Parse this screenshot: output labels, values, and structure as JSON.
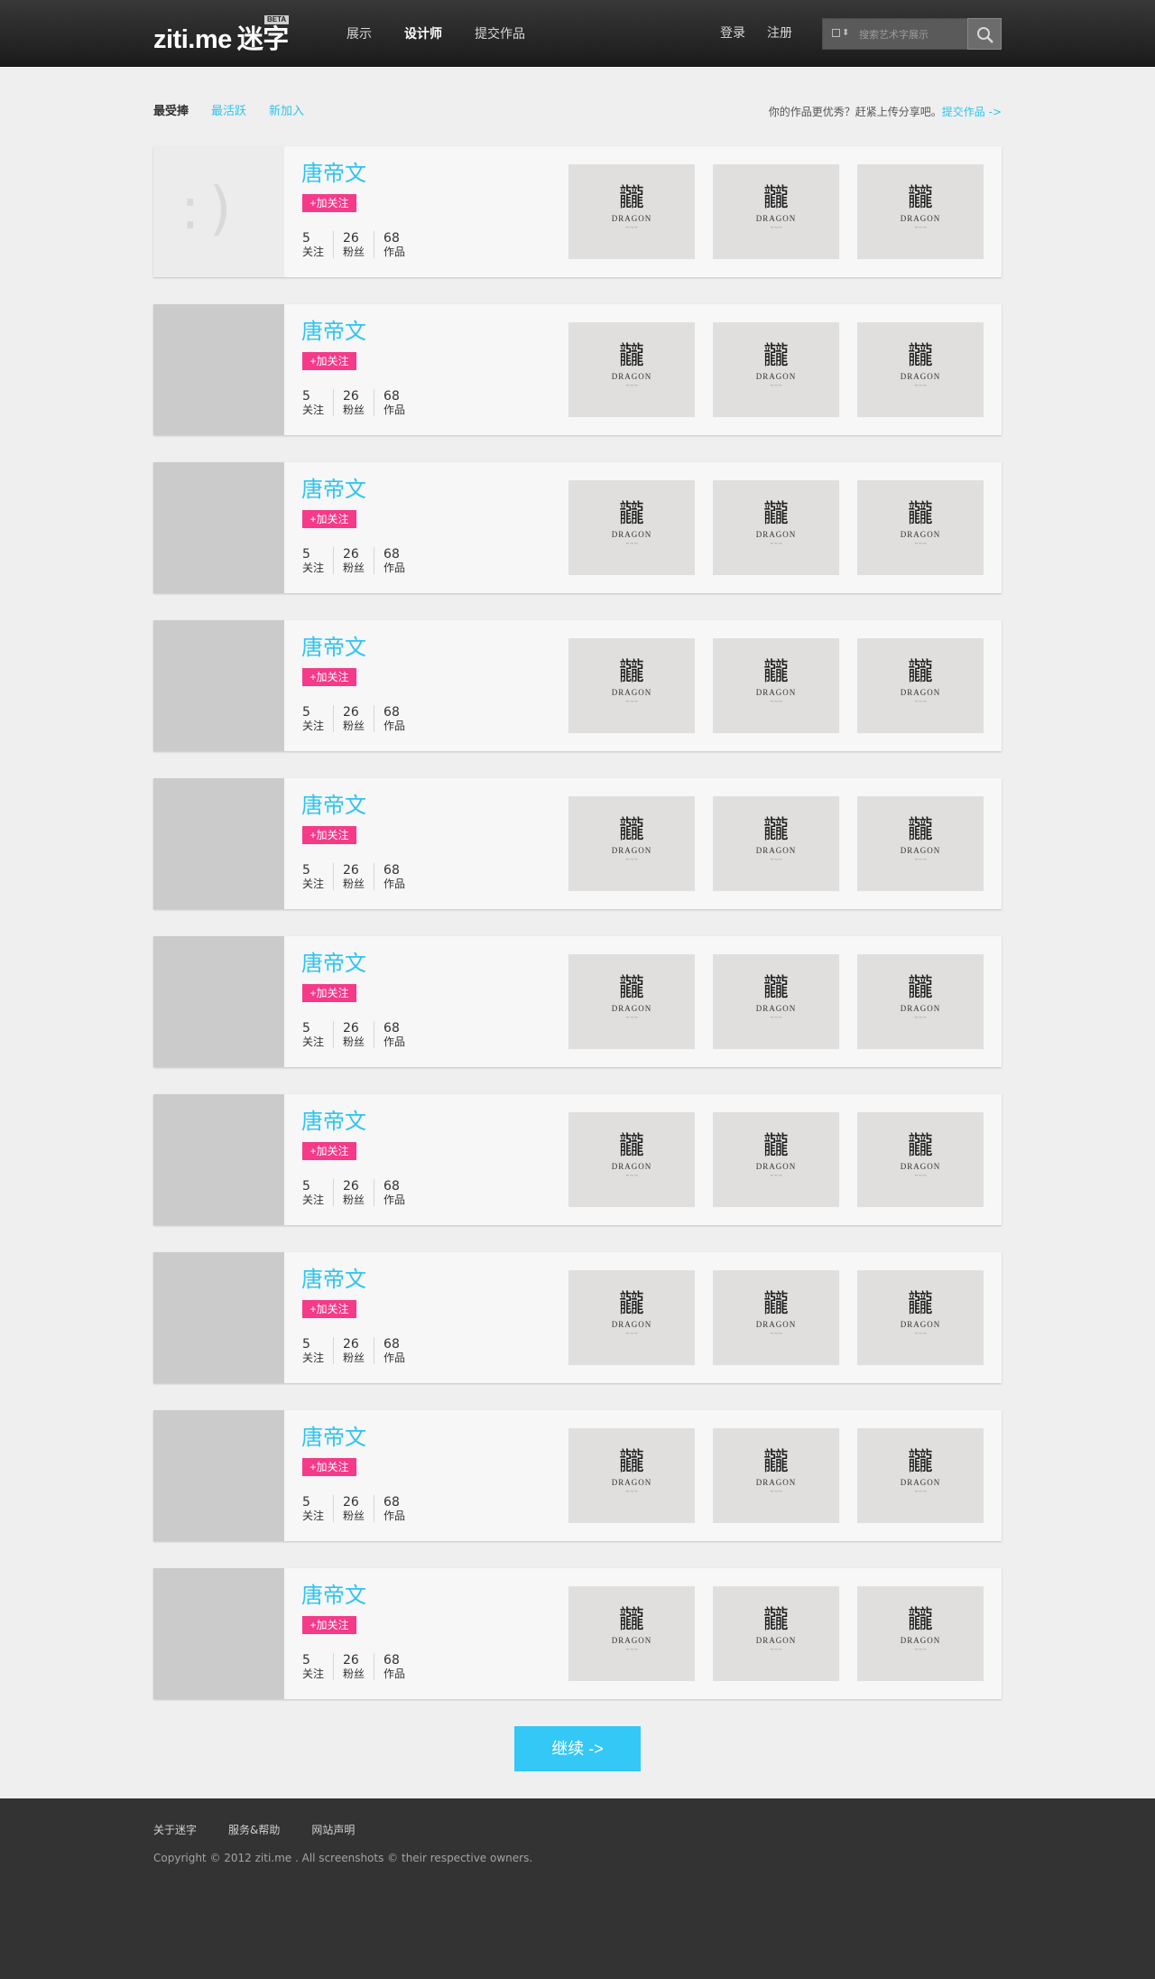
{
  "header": {
    "logo_en": "ziti.me",
    "logo_cn": "迷字",
    "beta": "BETA",
    "nav": [
      {
        "label": "展示",
        "active": false
      },
      {
        "label": "设计师",
        "active": true
      },
      {
        "label": "提交作品",
        "active": false
      }
    ],
    "login": "登录",
    "register": "注册",
    "search": {
      "type_icon": "image-icon",
      "placeholder": "搜索艺术字展示",
      "button_icon": "search-icon"
    }
  },
  "tabs": [
    {
      "label": "最受捧",
      "active": true
    },
    {
      "label": "最活跃",
      "active": false
    },
    {
      "label": "新加入",
      "active": false
    }
  ],
  "promo": {
    "text": "你的作品更优秀？赶紧上传分享吧。",
    "link": "提交作品 ->"
  },
  "designers": [
    {
      "name": "唐帝文",
      "follow": "+加关注",
      "following": "5",
      "following_label": "关注",
      "fans": "26",
      "fans_label": "粉丝",
      "works": "68",
      "works_label": "作品",
      "avatar": "smiley"
    },
    {
      "name": "唐帝文",
      "follow": "+加关注",
      "following": "5",
      "following_label": "关注",
      "fans": "26",
      "fans_label": "粉丝",
      "works": "68",
      "works_label": "作品",
      "avatar": "blank"
    },
    {
      "name": "唐帝文",
      "follow": "+加关注",
      "following": "5",
      "following_label": "关注",
      "fans": "26",
      "fans_label": "粉丝",
      "works": "68",
      "works_label": "作品",
      "avatar": "blank"
    },
    {
      "name": "唐帝文",
      "follow": "+加关注",
      "following": "5",
      "following_label": "关注",
      "fans": "26",
      "fans_label": "粉丝",
      "works": "68",
      "works_label": "作品",
      "avatar": "blank"
    },
    {
      "name": "唐帝文",
      "follow": "+加关注",
      "following": "5",
      "following_label": "关注",
      "fans": "26",
      "fans_label": "粉丝",
      "works": "68",
      "works_label": "作品",
      "avatar": "blank"
    },
    {
      "name": "唐帝文",
      "follow": "+加关注",
      "following": "5",
      "following_label": "关注",
      "fans": "26",
      "fans_label": "粉丝",
      "works": "68",
      "works_label": "作品",
      "avatar": "blank"
    },
    {
      "name": "唐帝文",
      "follow": "+加关注",
      "following": "5",
      "following_label": "关注",
      "fans": "26",
      "fans_label": "粉丝",
      "works": "68",
      "works_label": "作品",
      "avatar": "blank"
    },
    {
      "name": "唐帝文",
      "follow": "+加关注",
      "following": "5",
      "following_label": "关注",
      "fans": "26",
      "fans_label": "粉丝",
      "works": "68",
      "works_label": "作品",
      "avatar": "blank"
    },
    {
      "name": "唐帝文",
      "follow": "+加关注",
      "following": "5",
      "following_label": "关注",
      "fans": "26",
      "fans_label": "粉丝",
      "works": "68",
      "works_label": "作品",
      "avatar": "blank"
    },
    {
      "name": "唐帝文",
      "follow": "+加关注",
      "following": "5",
      "following_label": "关注",
      "fans": "26",
      "fans_label": "粉丝",
      "works": "68",
      "works_label": "作品",
      "avatar": "blank"
    }
  ],
  "thumbnail": {
    "glyph": "龖",
    "word": "DRAGON"
  },
  "more_button": "继续 ->",
  "footer": {
    "links": [
      "关于迷字",
      "服务&帮助",
      "网站声明"
    ],
    "copyright": "Copyright © 2012 ziti.me . All screenshots © their respective owners."
  },
  "colors": {
    "accent": "#2ec4f0",
    "follow_pink": "#f53a8a",
    "more_button": "#33c8f5",
    "header_dark": "#262626",
    "footer_dark": "#333333"
  }
}
